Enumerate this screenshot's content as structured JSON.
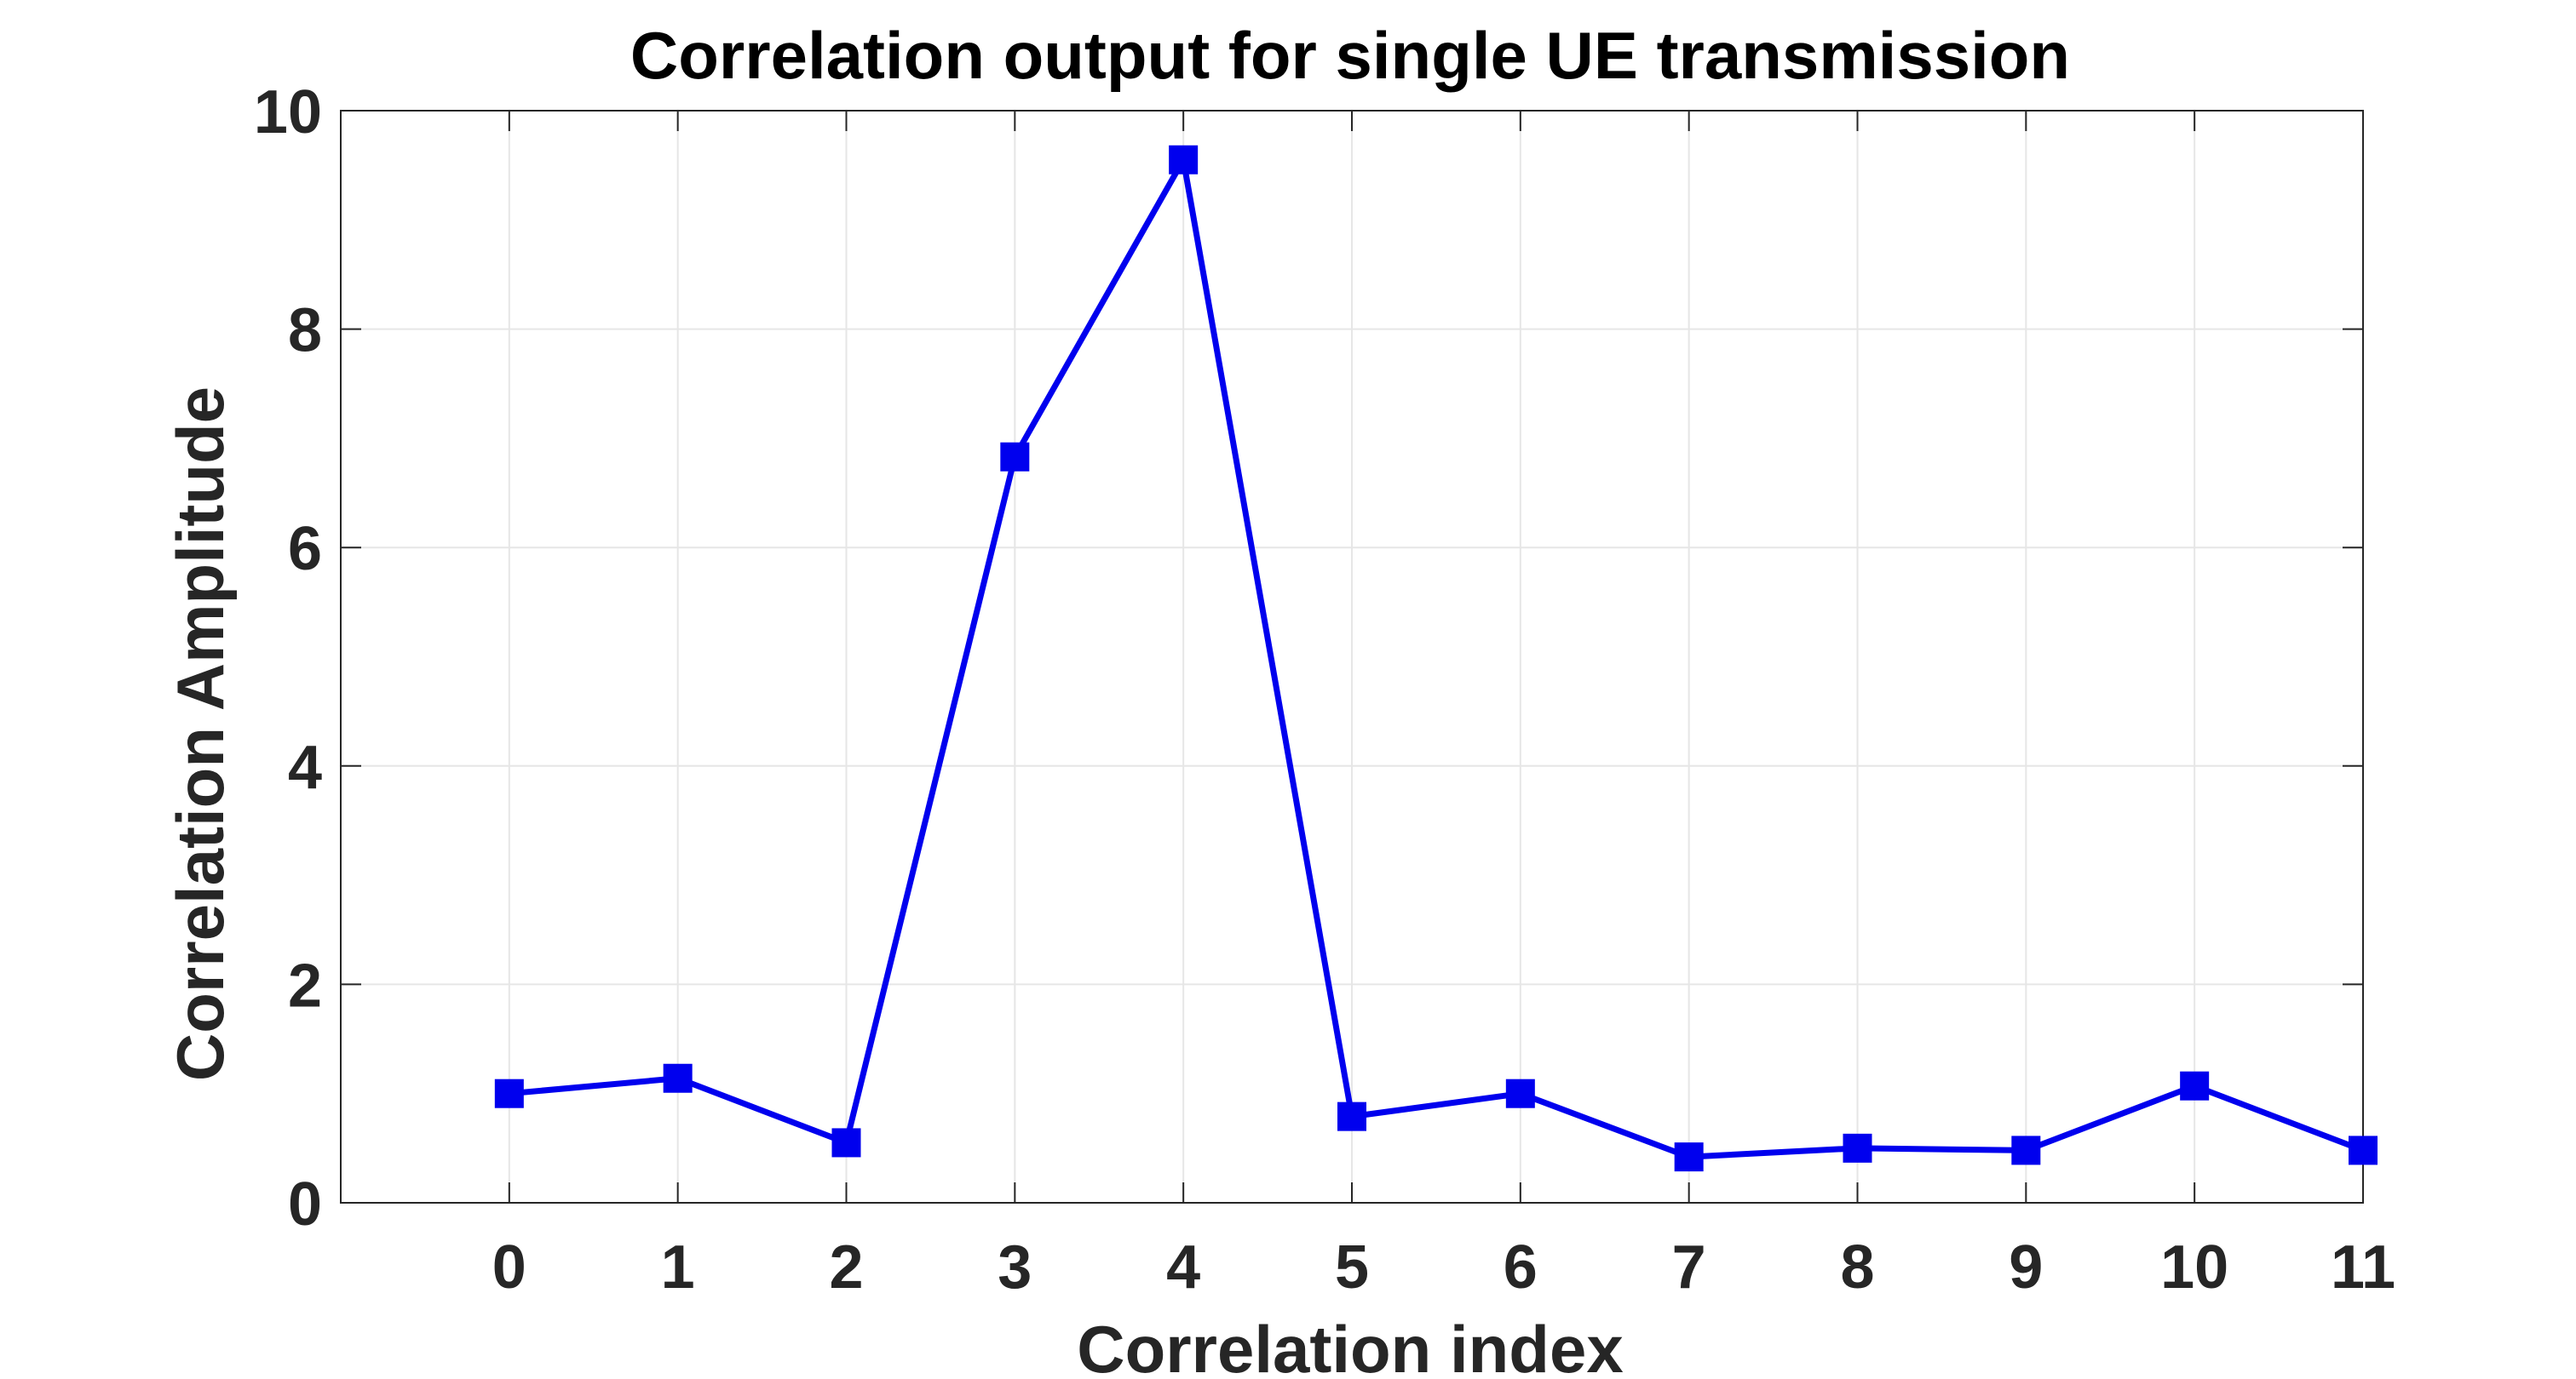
{
  "chart_data": {
    "type": "line",
    "title": "Correlation output for single UE transmission",
    "xlabel": "Correlation index",
    "ylabel": "Correlation Amplitude",
    "xlim": [
      -1,
      11
    ],
    "ylim": [
      0,
      10
    ],
    "x_ticks": [
      0,
      1,
      2,
      3,
      4,
      5,
      6,
      7,
      8,
      9,
      10,
      11
    ],
    "x_tick_labels": [
      "0",
      "1",
      "2",
      "3",
      "4",
      "5",
      "6",
      "7",
      "8",
      "9",
      "10",
      "11"
    ],
    "y_ticks": [
      0,
      2,
      4,
      6,
      8,
      10
    ],
    "y_tick_labels": [
      "0",
      "2",
      "4",
      "6",
      "8",
      "10"
    ],
    "grid": true,
    "series": [
      {
        "color": "#0000ee",
        "marker": "square",
        "x": [
          0,
          1,
          2,
          3,
          4,
          5,
          6,
          7,
          8,
          9,
          10,
          11
        ],
        "values": [
          1.0,
          1.14,
          0.55,
          6.83,
          9.55,
          0.79,
          1.0,
          0.42,
          0.5,
          0.48,
          1.07,
          0.48
        ]
      }
    ]
  }
}
